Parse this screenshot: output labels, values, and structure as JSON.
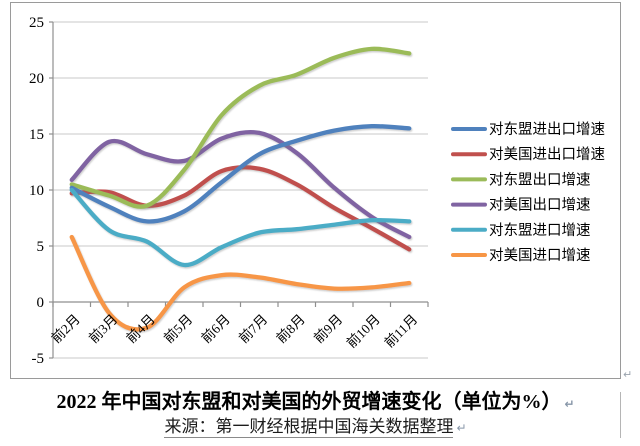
{
  "caption": {
    "title": "2022 年中国对东盟和对美国的外贸增速变化（单位为%）",
    "source": "来源：第一财经根据中国海关数据整理",
    "paragraph_mark": "↵"
  },
  "chart_data": {
    "type": "line",
    "title": "2022 年中国对东盟和对美国的外贸增速变化（单位为%）",
    "source": "来源：第一财经根据中国海关数据整理",
    "unit": "%",
    "categories": [
      "前2月",
      "前3月",
      "前4月",
      "前5月",
      "前6月",
      "前7月",
      "前8月",
      "前9月",
      "前10月",
      "前11月"
    ],
    "series": [
      {
        "key": "asean-total",
        "name": "对东盟进出口增速",
        "color": "#4F81BD",
        "values": [
          10.2,
          8.5,
          7.2,
          8.1,
          10.7,
          13.2,
          14.4,
          15.3,
          15.7,
          15.5
        ]
      },
      {
        "key": "us-total",
        "name": "对美国进出口增速",
        "color": "#C0504D",
        "values": [
          9.7,
          9.8,
          8.6,
          9.5,
          11.7,
          11.9,
          10.5,
          8.4,
          6.6,
          4.7
        ]
      },
      {
        "key": "asean-export",
        "name": "对东盟出口增速",
        "color": "#9BBB59",
        "values": [
          10.5,
          9.5,
          8.6,
          11.8,
          16.7,
          19.3,
          20.3,
          21.8,
          22.6,
          22.2
        ]
      },
      {
        "key": "us-export",
        "name": "对美国出口增速",
        "color": "#8064A2",
        "values": [
          10.9,
          14.3,
          13.2,
          12.6,
          14.6,
          15.1,
          13.3,
          10.2,
          7.6,
          5.8
        ]
      },
      {
        "key": "asean-import",
        "name": "对东盟进口增速",
        "color": "#4BACC6",
        "values": [
          10.0,
          6.4,
          5.4,
          3.3,
          4.9,
          6.2,
          6.5,
          6.9,
          7.3,
          7.2
        ]
      },
      {
        "key": "us-import",
        "name": "对美国进口增速",
        "color": "#F79646",
        "values": [
          5.8,
          -1.0,
          -2.3,
          1.3,
          2.4,
          2.2,
          1.6,
          1.2,
          1.3,
          1.7
        ]
      }
    ],
    "ylim": [
      -5,
      25
    ],
    "yticks": [
      -5,
      0,
      5,
      10,
      15,
      20,
      25
    ],
    "grid": true,
    "smooth": true,
    "legend_position": "right",
    "grid_color": "#c8c8c8",
    "axis_color": "#8f8f8f",
    "text_color": "#000000"
  }
}
